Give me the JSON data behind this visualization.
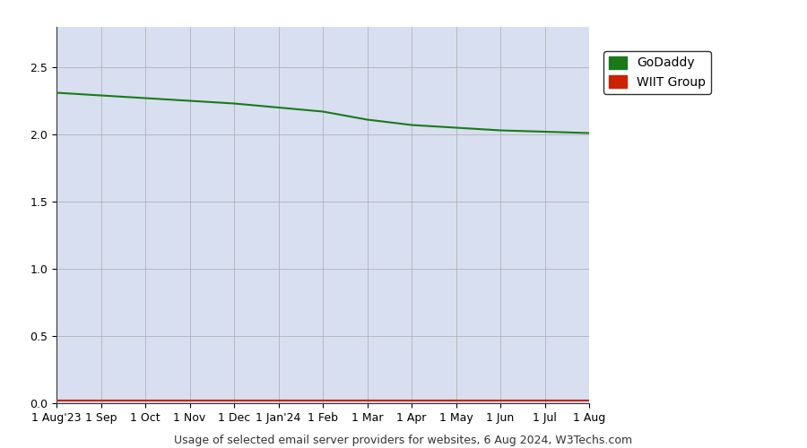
{
  "title": "Usage of selected email server providers for websites, 6 Aug 2024, W3Techs.com",
  "plot_bg_color": "#d8dff0",
  "outer_bg_color": "#ffffff",
  "godaddy_color": "#1a7a1a",
  "wiit_color": "#cc2200",
  "fill_color": "#d8dff0",
  "ylim": [
    0,
    2.8
  ],
  "yticks": [
    0,
    0.5,
    1.0,
    1.5,
    2.0,
    2.5
  ],
  "legend_labels": [
    "GoDaddy",
    "WIIT Group"
  ],
  "legend_colors": [
    "#1a7a1a",
    "#cc2200"
  ],
  "x_tick_labels": [
    "1 Aug'23",
    "1 Sep",
    "1 Oct",
    "1 Nov",
    "1 Dec",
    "1 Jan'24",
    "1 Feb",
    "1 Mar",
    "1 Apr",
    "1 May",
    "1 Jun",
    "1 Jul",
    "1 Aug"
  ],
  "godaddy_values": [
    2.31,
    2.29,
    2.27,
    2.25,
    2.23,
    2.2,
    2.17,
    2.11,
    2.07,
    2.05,
    2.03,
    2.02,
    2.01
  ],
  "wiit_values": [
    0.02,
    0.02,
    0.02,
    0.02,
    0.02,
    0.02,
    0.02,
    0.02,
    0.02,
    0.02,
    0.02,
    0.02,
    0.02
  ],
  "grid_color": "#aaaaaa",
  "line_width": 1.5,
  "title_fontsize": 9,
  "tick_fontsize": 9,
  "legend_fontsize": 10
}
